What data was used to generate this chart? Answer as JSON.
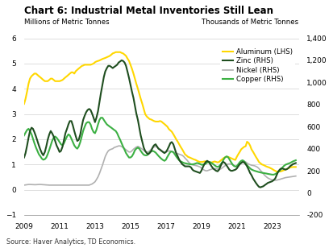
{
  "title": "Chart 6: Industrial Metal Inventories Still Lean",
  "ylabel_left": "Millions of Metric Tonnes",
  "ylabel_right": "Thousands of Metric Tonnes",
  "source": "Source: Haver Analytics, TD Economics.",
  "ylim_left": [
    -1,
    6
  ],
  "ylim_right": [
    -200,
    1400
  ],
  "yticks_left": [
    -1,
    0,
    1,
    2,
    3,
    4,
    5,
    6
  ],
  "yticks_right": [
    -200,
    0,
    200,
    400,
    600,
    800,
    1000,
    1200,
    1400
  ],
  "xlim": [
    2009.0,
    2024.5
  ],
  "xticks": [
    2009,
    2011,
    2013,
    2015,
    2017,
    2019,
    2021,
    2023
  ],
  "legend": [
    "Aluminum (LHS)",
    "Zinc (RHS)",
    "Nickel (RHS)",
    "Copper (RHS)"
  ],
  "colors": {
    "aluminum": "#FFD700",
    "zinc": "#1f4e1f",
    "nickel": "#b0b0b0",
    "copper": "#3cb043"
  },
  "aluminum": {
    "x": [
      2009.0,
      2009.08,
      2009.17,
      2009.25,
      2009.33,
      2009.42,
      2009.5,
      2009.58,
      2009.67,
      2009.75,
      2009.83,
      2009.92,
      2010.0,
      2010.08,
      2010.17,
      2010.25,
      2010.33,
      2010.42,
      2010.5,
      2010.58,
      2010.67,
      2010.75,
      2010.83,
      2010.92,
      2011.0,
      2011.08,
      2011.17,
      2011.25,
      2011.33,
      2011.42,
      2011.5,
      2011.58,
      2011.67,
      2011.75,
      2011.83,
      2011.92,
      2012.0,
      2012.08,
      2012.17,
      2012.25,
      2012.33,
      2012.42,
      2012.5,
      2012.58,
      2012.67,
      2012.75,
      2012.83,
      2012.92,
      2013.0,
      2013.08,
      2013.17,
      2013.25,
      2013.33,
      2013.42,
      2013.5,
      2013.58,
      2013.67,
      2013.75,
      2013.83,
      2013.92,
      2014.0,
      2014.08,
      2014.17,
      2014.25,
      2014.33,
      2014.42,
      2014.5,
      2014.58,
      2014.67,
      2014.75,
      2014.83,
      2014.92,
      2015.0,
      2015.08,
      2015.17,
      2015.25,
      2015.33,
      2015.42,
      2015.5,
      2015.58,
      2015.67,
      2015.75,
      2015.83,
      2015.92,
      2016.0,
      2016.08,
      2016.17,
      2016.25,
      2016.33,
      2016.42,
      2016.5,
      2016.58,
      2016.67,
      2016.75,
      2016.83,
      2016.92,
      2017.0,
      2017.08,
      2017.17,
      2017.25,
      2017.33,
      2017.42,
      2017.5,
      2017.58,
      2017.67,
      2017.75,
      2017.83,
      2017.92,
      2018.0,
      2018.08,
      2018.17,
      2018.25,
      2018.33,
      2018.42,
      2018.5,
      2018.58,
      2018.67,
      2018.75,
      2018.83,
      2018.92,
      2019.0,
      2019.08,
      2019.17,
      2019.25,
      2019.33,
      2019.42,
      2019.5,
      2019.58,
      2019.67,
      2019.75,
      2019.83,
      2019.92,
      2020.0,
      2020.08,
      2020.17,
      2020.25,
      2020.33,
      2020.42,
      2020.5,
      2020.58,
      2020.67,
      2020.75,
      2020.83,
      2020.92,
      2021.0,
      2021.08,
      2021.17,
      2021.25,
      2021.33,
      2021.42,
      2021.5,
      2021.58,
      2021.67,
      2021.75,
      2021.83,
      2021.92,
      2022.0,
      2022.08,
      2022.17,
      2022.25,
      2022.33,
      2022.42,
      2022.5,
      2022.58,
      2022.67,
      2022.75,
      2022.83,
      2022.92,
      2023.0,
      2023.08,
      2023.17,
      2023.25,
      2023.33,
      2023.42,
      2023.5,
      2023.58,
      2023.67,
      2023.75,
      2023.83,
      2023.92,
      2024.0,
      2024.17,
      2024.33
    ],
    "y": [
      3.4,
      3.6,
      3.9,
      4.2,
      4.4,
      4.5,
      4.55,
      4.6,
      4.6,
      4.55,
      4.5,
      4.45,
      4.4,
      4.35,
      4.3,
      4.3,
      4.3,
      4.35,
      4.4,
      4.4,
      4.35,
      4.3,
      4.3,
      4.3,
      4.3,
      4.32,
      4.35,
      4.4,
      4.45,
      4.5,
      4.55,
      4.6,
      4.65,
      4.65,
      4.6,
      4.7,
      4.75,
      4.8,
      4.85,
      4.9,
      4.92,
      4.95,
      4.95,
      4.95,
      4.95,
      4.95,
      4.97,
      5.0,
      5.05,
      5.08,
      5.1,
      5.12,
      5.15,
      5.18,
      5.2,
      5.22,
      5.25,
      5.28,
      5.3,
      5.35,
      5.4,
      5.42,
      5.45,
      5.45,
      5.45,
      5.45,
      5.42,
      5.4,
      5.35,
      5.3,
      5.2,
      5.1,
      4.95,
      4.8,
      4.6,
      4.4,
      4.2,
      4.0,
      3.8,
      3.6,
      3.4,
      3.2,
      3.0,
      2.9,
      2.85,
      2.8,
      2.78,
      2.75,
      2.72,
      2.7,
      2.7,
      2.7,
      2.72,
      2.7,
      2.65,
      2.6,
      2.55,
      2.5,
      2.4,
      2.35,
      2.3,
      2.2,
      2.1,
      2.0,
      1.9,
      1.8,
      1.7,
      1.6,
      1.5,
      1.4,
      1.35,
      1.3,
      1.28,
      1.25,
      1.22,
      1.2,
      1.18,
      1.15,
      1.12,
      1.1,
      1.1,
      1.1,
      1.12,
      1.12,
      1.1,
      1.1,
      1.08,
      1.08,
      1.1,
      1.12,
      1.1,
      1.08,
      1.1,
      1.15,
      1.2,
      1.25,
      1.28,
      1.3,
      1.3,
      1.28,
      1.25,
      1.22,
      1.2,
      1.18,
      1.3,
      1.4,
      1.5,
      1.6,
      1.65,
      1.7,
      1.72,
      1.9,
      1.85,
      1.75,
      1.6,
      1.5,
      1.4,
      1.3,
      1.2,
      1.1,
      1.05,
      1.0,
      0.98,
      0.95,
      0.92,
      0.9,
      0.88,
      0.85,
      0.82,
      0.78,
      0.75,
      0.72,
      0.72,
      0.72,
      0.73,
      0.75,
      0.78,
      0.8,
      0.82,
      0.85,
      0.88,
      0.9,
      0.9
    ]
  },
  "zinc": {
    "x": [
      2009.0,
      2009.08,
      2009.17,
      2009.25,
      2009.33,
      2009.42,
      2009.5,
      2009.58,
      2009.67,
      2009.75,
      2009.83,
      2009.92,
      2010.0,
      2010.08,
      2010.17,
      2010.25,
      2010.33,
      2010.42,
      2010.5,
      2010.58,
      2010.67,
      2010.75,
      2010.83,
      2010.92,
      2011.0,
      2011.08,
      2011.17,
      2011.25,
      2011.33,
      2011.42,
      2011.5,
      2011.58,
      2011.67,
      2011.75,
      2011.83,
      2011.92,
      2012.0,
      2012.08,
      2012.17,
      2012.25,
      2012.33,
      2012.42,
      2012.5,
      2012.58,
      2012.67,
      2012.75,
      2012.83,
      2012.92,
      2013.0,
      2013.08,
      2013.17,
      2013.25,
      2013.33,
      2013.42,
      2013.5,
      2013.58,
      2013.67,
      2013.75,
      2013.83,
      2013.92,
      2014.0,
      2014.08,
      2014.17,
      2014.25,
      2014.33,
      2014.42,
      2014.5,
      2014.58,
      2014.67,
      2014.75,
      2014.83,
      2014.92,
      2015.0,
      2015.08,
      2015.17,
      2015.25,
      2015.33,
      2015.42,
      2015.5,
      2015.58,
      2015.67,
      2015.75,
      2015.83,
      2015.92,
      2016.0,
      2016.08,
      2016.17,
      2016.25,
      2016.33,
      2016.42,
      2016.5,
      2016.58,
      2016.67,
      2016.75,
      2016.83,
      2016.92,
      2017.0,
      2017.08,
      2017.17,
      2017.25,
      2017.33,
      2017.42,
      2017.5,
      2017.58,
      2017.67,
      2017.75,
      2017.83,
      2017.92,
      2018.0,
      2018.08,
      2018.17,
      2018.25,
      2018.33,
      2018.42,
      2018.5,
      2018.58,
      2018.67,
      2018.75,
      2018.83,
      2018.92,
      2019.0,
      2019.08,
      2019.17,
      2019.25,
      2019.33,
      2019.42,
      2019.5,
      2019.58,
      2019.67,
      2019.75,
      2019.83,
      2019.92,
      2020.0,
      2020.08,
      2020.17,
      2020.25,
      2020.33,
      2020.42,
      2020.5,
      2020.58,
      2020.67,
      2020.75,
      2020.83,
      2020.92,
      2021.0,
      2021.08,
      2021.17,
      2021.25,
      2021.33,
      2021.42,
      2021.5,
      2021.58,
      2021.67,
      2021.75,
      2021.83,
      2021.92,
      2022.0,
      2022.08,
      2022.17,
      2022.25,
      2022.33,
      2022.42,
      2022.5,
      2022.58,
      2022.67,
      2022.75,
      2022.83,
      2022.92,
      2023.0,
      2023.08,
      2023.17,
      2023.25,
      2023.33,
      2023.42,
      2023.5,
      2023.58,
      2023.67,
      2023.75,
      2023.83,
      2023.92,
      2024.0,
      2024.17,
      2024.33
    ],
    "y": [
      320,
      360,
      430,
      500,
      560,
      590,
      580,
      550,
      510,
      470,
      430,
      390,
      360,
      340,
      370,
      420,
      480,
      530,
      560,
      540,
      510,
      470,
      430,
      400,
      370,
      380,
      420,
      480,
      540,
      580,
      620,
      650,
      650,
      610,
      560,
      510,
      470,
      480,
      530,
      600,
      660,
      700,
      730,
      750,
      760,
      750,
      720,
      680,
      640,
      680,
      740,
      820,
      900,
      980,
      1050,
      1100,
      1130,
      1150,
      1150,
      1140,
      1130,
      1140,
      1150,
      1160,
      1180,
      1190,
      1200,
      1195,
      1180,
      1150,
      1100,
      1040,
      980,
      920,
      860,
      790,
      720,
      660,
      590,
      520,
      460,
      410,
      380,
      360,
      350,
      360,
      380,
      410,
      430,
      440,
      420,
      400,
      390,
      380,
      370,
      360,
      370,
      390,
      420,
      450,
      460,
      440,
      400,
      360,
      330,
      300,
      280,
      260,
      250,
      240,
      240,
      240,
      240,
      230,
      210,
      200,
      195,
      190,
      185,
      180,
      200,
      230,
      260,
      280,
      290,
      280,
      260,
      240,
      220,
      210,
      200,
      195,
      210,
      240,
      270,
      280,
      270,
      250,
      230,
      210,
      200,
      200,
      205,
      210,
      220,
      240,
      260,
      270,
      280,
      275,
      260,
      240,
      210,
      180,
      160,
      130,
      110,
      90,
      70,
      55,
      50,
      55,
      60,
      70,
      80,
      90,
      95,
      100,
      105,
      115,
      130,
      160,
      190,
      210,
      220,
      220,
      215,
      210,
      215,
      225,
      240,
      260,
      270
    ]
  },
  "nickel": {
    "x": [
      2009.0,
      2009.08,
      2009.17,
      2009.25,
      2009.33,
      2009.42,
      2009.5,
      2009.58,
      2009.67,
      2009.75,
      2009.83,
      2009.92,
      2010.0,
      2010.08,
      2010.17,
      2010.25,
      2010.33,
      2010.42,
      2010.5,
      2010.58,
      2010.67,
      2010.75,
      2010.83,
      2010.92,
      2011.0,
      2011.08,
      2011.17,
      2011.25,
      2011.33,
      2011.42,
      2011.5,
      2011.58,
      2011.67,
      2011.75,
      2011.83,
      2011.92,
      2012.0,
      2012.08,
      2012.17,
      2012.25,
      2012.33,
      2012.42,
      2012.5,
      2012.58,
      2012.67,
      2012.75,
      2012.83,
      2012.92,
      2013.0,
      2013.08,
      2013.17,
      2013.25,
      2013.33,
      2013.42,
      2013.5,
      2013.58,
      2013.67,
      2013.75,
      2013.83,
      2013.92,
      2014.0,
      2014.08,
      2014.17,
      2014.25,
      2014.33,
      2014.42,
      2014.5,
      2014.58,
      2014.67,
      2014.75,
      2014.83,
      2014.92,
      2015.0,
      2015.08,
      2015.17,
      2015.25,
      2015.33,
      2015.42,
      2015.5,
      2015.58,
      2015.67,
      2015.75,
      2015.83,
      2015.92,
      2016.0,
      2016.08,
      2016.17,
      2016.25,
      2016.33,
      2016.42,
      2016.5,
      2016.58,
      2016.67,
      2016.75,
      2016.83,
      2016.92,
      2017.0,
      2017.08,
      2017.17,
      2017.25,
      2017.33,
      2017.42,
      2017.5,
      2017.58,
      2017.67,
      2017.75,
      2017.83,
      2017.92,
      2018.0,
      2018.08,
      2018.17,
      2018.25,
      2018.33,
      2018.42,
      2018.5,
      2018.58,
      2018.67,
      2018.75,
      2018.83,
      2018.92,
      2019.0,
      2019.08,
      2019.17,
      2019.25,
      2019.33,
      2019.42,
      2019.5,
      2019.58,
      2019.67,
      2019.75,
      2019.83,
      2019.92,
      2020.0,
      2020.08,
      2020.17,
      2020.25,
      2020.33,
      2020.42,
      2020.5,
      2020.58,
      2020.67,
      2020.75,
      2020.83,
      2020.92,
      2021.0,
      2021.08,
      2021.17,
      2021.25,
      2021.33,
      2021.42,
      2021.5,
      2021.58,
      2021.67,
      2021.75,
      2021.83,
      2021.92,
      2022.0,
      2022.08,
      2022.17,
      2022.25,
      2022.33,
      2022.42,
      2022.5,
      2022.58,
      2022.67,
      2022.75,
      2022.83,
      2022.92,
      2023.0,
      2023.08,
      2023.17,
      2023.25,
      2023.33,
      2023.42,
      2023.5,
      2023.58,
      2023.67,
      2023.75,
      2023.83,
      2023.92,
      2024.0,
      2024.17,
      2024.33
    ],
    "y": [
      70,
      72,
      74,
      76,
      76,
      75,
      74,
      74,
      74,
      75,
      76,
      76,
      75,
      74,
      73,
      72,
      71,
      70,
      70,
      70,
      70,
      70,
      70,
      70,
      70,
      70,
      70,
      70,
      70,
      70,
      70,
      70,
      70,
      70,
      70,
      70,
      70,
      70,
      70,
      70,
      70,
      70,
      70,
      70,
      70,
      75,
      80,
      90,
      100,
      120,
      145,
      175,
      210,
      250,
      290,
      330,
      360,
      380,
      390,
      395,
      400,
      410,
      415,
      420,
      425,
      425,
      420,
      410,
      400,
      390,
      380,
      370,
      370,
      380,
      395,
      405,
      415,
      420,
      415,
      405,
      395,
      385,
      375,
      370,
      370,
      380,
      395,
      405,
      415,
      420,
      415,
      405,
      395,
      385,
      375,
      370,
      370,
      375,
      380,
      380,
      375,
      370,
      365,
      360,
      355,
      350,
      345,
      340,
      330,
      315,
      300,
      285,
      270,
      260,
      255,
      250,
      248,
      245,
      240,
      235,
      225,
      215,
      205,
      200,
      200,
      205,
      210,
      215,
      218,
      220,
      218,
      215,
      210,
      215,
      225,
      235,
      245,
      255,
      260,
      262,
      260,
      255,
      248,
      240,
      235,
      245,
      260,
      275,
      285,
      285,
      280,
      270,
      260,
      255,
      250,
      248,
      245,
      240,
      232,
      220,
      205,
      188,
      172,
      158,
      145,
      135,
      128,
      122,
      118,
      115,
      114,
      115,
      118,
      122,
      126,
      130,
      134,
      138,
      140,
      142,
      144,
      148,
      152
    ]
  },
  "copper": {
    "x": [
      2009.0,
      2009.08,
      2009.17,
      2009.25,
      2009.33,
      2009.42,
      2009.5,
      2009.58,
      2009.67,
      2009.75,
      2009.83,
      2009.92,
      2010.0,
      2010.08,
      2010.17,
      2010.25,
      2010.33,
      2010.42,
      2010.5,
      2010.58,
      2010.67,
      2010.75,
      2010.83,
      2010.92,
      2011.0,
      2011.08,
      2011.17,
      2011.25,
      2011.33,
      2011.42,
      2011.5,
      2011.58,
      2011.67,
      2011.75,
      2011.83,
      2011.92,
      2012.0,
      2012.08,
      2012.17,
      2012.25,
      2012.33,
      2012.42,
      2012.5,
      2012.58,
      2012.67,
      2012.75,
      2012.83,
      2012.92,
      2013.0,
      2013.08,
      2013.17,
      2013.25,
      2013.33,
      2013.42,
      2013.5,
      2013.58,
      2013.67,
      2013.75,
      2013.83,
      2013.92,
      2014.0,
      2014.08,
      2014.17,
      2014.25,
      2014.33,
      2014.42,
      2014.5,
      2014.58,
      2014.67,
      2014.75,
      2014.83,
      2014.92,
      2015.0,
      2015.08,
      2015.17,
      2015.25,
      2015.33,
      2015.42,
      2015.5,
      2015.58,
      2015.67,
      2015.75,
      2015.83,
      2015.92,
      2016.0,
      2016.08,
      2016.17,
      2016.25,
      2016.33,
      2016.42,
      2016.5,
      2016.58,
      2016.67,
      2016.75,
      2016.83,
      2016.92,
      2017.0,
      2017.08,
      2017.17,
      2017.25,
      2017.33,
      2017.42,
      2017.5,
      2017.58,
      2017.67,
      2017.75,
      2017.83,
      2017.92,
      2018.0,
      2018.08,
      2018.17,
      2018.25,
      2018.33,
      2018.42,
      2018.5,
      2018.58,
      2018.67,
      2018.75,
      2018.83,
      2018.92,
      2019.0,
      2019.08,
      2019.17,
      2019.25,
      2019.33,
      2019.42,
      2019.5,
      2019.58,
      2019.67,
      2019.75,
      2019.83,
      2019.92,
      2020.0,
      2020.08,
      2020.17,
      2020.25,
      2020.33,
      2020.42,
      2020.5,
      2020.58,
      2020.67,
      2020.75,
      2020.83,
      2020.92,
      2021.0,
      2021.08,
      2021.17,
      2021.25,
      2021.33,
      2021.42,
      2021.5,
      2021.58,
      2021.67,
      2021.75,
      2021.83,
      2021.92,
      2022.0,
      2022.08,
      2022.17,
      2022.25,
      2022.33,
      2022.42,
      2022.5,
      2022.58,
      2022.67,
      2022.75,
      2022.83,
      2022.92,
      2023.0,
      2023.08,
      2023.17,
      2023.25,
      2023.33,
      2023.42,
      2023.5,
      2023.58,
      2023.67,
      2023.75,
      2023.83,
      2023.92,
      2024.0,
      2024.17,
      2024.33
    ],
    "y": [
      520,
      545,
      570,
      580,
      560,
      530,
      490,
      450,
      410,
      380,
      350,
      330,
      310,
      300,
      305,
      320,
      350,
      390,
      430,
      470,
      500,
      510,
      500,
      480,
      460,
      440,
      430,
      450,
      480,
      510,
      530,
      520,
      490,
      460,
      430,
      410,
      400,
      420,
      460,
      510,
      560,
      600,
      630,
      640,
      640,
      620,
      580,
      550,
      540,
      570,
      620,
      660,
      680,
      680,
      660,
      640,
      620,
      610,
      600,
      590,
      580,
      570,
      560,
      540,
      510,
      480,
      450,
      420,
      390,
      360,
      340,
      320,
      320,
      330,
      355,
      385,
      400,
      410,
      400,
      380,
      360,
      345,
      340,
      340,
      350,
      365,
      375,
      380,
      375,
      365,
      350,
      335,
      320,
      308,
      298,
      290,
      300,
      325,
      350,
      370,
      375,
      368,
      350,
      330,
      310,
      295,
      285,
      278,
      272,
      268,
      265,
      262,
      260,
      258,
      258,
      260,
      265,
      270,
      268,
      262,
      255,
      255,
      258,
      265,
      275,
      280,
      278,
      270,
      260,
      250,
      240,
      235,
      240,
      255,
      275,
      300,
      320,
      330,
      325,
      305,
      280,
      260,
      245,
      238,
      242,
      258,
      278,
      290,
      295,
      285,
      268,
      250,
      235,
      222,
      212,
      205,
      200,
      196,
      192,
      188,
      185,
      182,
      180,
      178,
      175,
      172,
      170,
      168,
      165,
      165,
      170,
      178,
      188,
      200,
      215,
      230,
      245,
      255,
      260,
      265,
      270,
      285,
      295
    ]
  }
}
